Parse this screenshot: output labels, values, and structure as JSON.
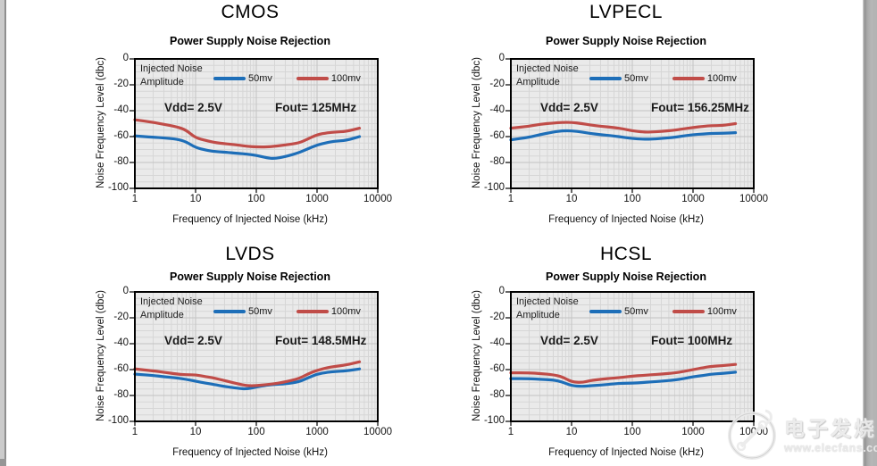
{
  "shared": {
    "legend": {
      "line1": "Injected Noise",
      "line2": "Amplitude"
    },
    "yticks": [
      0,
      -20,
      -40,
      -60,
      -80,
      -100
    ],
    "xticks": [
      1,
      10,
      100,
      1000,
      10000
    ],
    "colors": {
      "series_50mv": "#1d6eb8",
      "series_100mv": "#c04c48",
      "plot_bg": "#eaeaea",
      "grid_minor": "#d6d6d6",
      "grid_major": "#c3c3c3",
      "plot_border": "#000000"
    }
  },
  "chart_data": [
    {
      "type": "line",
      "title": "CMOS",
      "subtitle": "Power Supply Noise Rejection",
      "vdd": "Vdd= 2.5V",
      "fout": "Fout= 125MHz",
      "xlabel": "Frequency of Injected Noise (kHz)",
      "ylabel": "Noise Frequency Level (dbc)",
      "xscale": "log",
      "xlim": [
        1,
        10000
      ],
      "ylim": [
        -100,
        0
      ],
      "x": [
        1,
        2,
        3,
        5,
        7,
        10,
        15,
        20,
        30,
        50,
        70,
        100,
        150,
        200,
        300,
        500,
        700,
        1000,
        1500,
        2000,
        3000,
        5000
      ],
      "series": [
        {
          "name": "50mv",
          "values": [
            -59.5,
            -60.5,
            -61,
            -62,
            -64,
            -68.5,
            -70.5,
            -71.5,
            -72,
            -73,
            -73.5,
            -74.5,
            -76.5,
            -77,
            -75.5,
            -72.5,
            -69.5,
            -66.5,
            -64.5,
            -63.5,
            -63,
            -60
          ]
        },
        {
          "name": "100mv",
          "values": [
            -47,
            -49,
            -50.5,
            -52.5,
            -55,
            -61,
            -63,
            -64.5,
            -65.5,
            -66.5,
            -67.5,
            -68,
            -68,
            -67.5,
            -66.5,
            -65,
            -62,
            -58.5,
            -57,
            -56.5,
            -56,
            -53.5
          ]
        }
      ]
    },
    {
      "type": "line",
      "title": "LVPECL",
      "subtitle": "Power Supply Noise Rejection",
      "vdd": "Vdd= 2.5V",
      "fout": "Fout= 156.25MHz",
      "xlabel": "Frequency of Injected Noise (kHz)",
      "ylabel": "Noise Frequency Level (dbc)",
      "xscale": "log",
      "xlim": [
        1,
        10000
      ],
      "ylim": [
        -100,
        0
      ],
      "x": [
        1,
        2,
        3,
        5,
        7,
        10,
        15,
        20,
        30,
        50,
        70,
        100,
        150,
        200,
        300,
        500,
        700,
        1000,
        1500,
        2000,
        3000,
        5000
      ],
      "series": [
        {
          "name": "50mv",
          "values": [
            -62.5,
            -60.5,
            -58.5,
            -56.5,
            -55.5,
            -55.5,
            -56.5,
            -57.5,
            -58.5,
            -59.5,
            -60.5,
            -61.5,
            -62,
            -62,
            -61.5,
            -60.5,
            -59.5,
            -58.5,
            -58,
            -57.5,
            -57.5,
            -57
          ]
        },
        {
          "name": "100mv",
          "values": [
            -53.5,
            -52,
            -50.5,
            -49.5,
            -49,
            -49,
            -50,
            -51,
            -52,
            -53,
            -54,
            -55.5,
            -56.5,
            -56.5,
            -56,
            -55,
            -54,
            -53,
            -52,
            -51.5,
            -51.5,
            -50
          ]
        }
      ]
    },
    {
      "type": "line",
      "title": "LVDS",
      "subtitle": "Power Supply Noise Rejection",
      "vdd": "Vdd= 2.5V",
      "fout": "Fout= 148.5MHz",
      "xlabel": "Frequency of Injected Noise (kHz)",
      "ylabel": "Noise Frequency Level (dbc)",
      "xscale": "log",
      "xlim": [
        1,
        10000
      ],
      "ylim": [
        -100,
        0
      ],
      "x": [
        1,
        2,
        3,
        5,
        7,
        10,
        15,
        20,
        30,
        50,
        70,
        100,
        150,
        200,
        300,
        500,
        700,
        1000,
        1500,
        2000,
        3000,
        5000
      ],
      "series": [
        {
          "name": "50mv",
          "values": [
            -63.5,
            -64.5,
            -65.5,
            -66.5,
            -67.5,
            -69,
            -70.5,
            -71.5,
            -73,
            -74.5,
            -75,
            -73.5,
            -72,
            -71.5,
            -71,
            -69.5,
            -66.5,
            -63.5,
            -62,
            -61.5,
            -61,
            -59.5
          ]
        },
        {
          "name": "100mv",
          "values": [
            -59.5,
            -61,
            -62,
            -63.5,
            -64,
            -64,
            -65.5,
            -66.5,
            -68.5,
            -71,
            -72.5,
            -72.5,
            -71.5,
            -71,
            -69.5,
            -67,
            -63.5,
            -60.5,
            -58.5,
            -57.5,
            -56.5,
            -54
          ]
        }
      ]
    },
    {
      "type": "line",
      "title": "HCSL",
      "subtitle": "Power Supply Noise Rejection",
      "vdd": "Vdd= 2.5V",
      "fout": "Fout= 100MHz",
      "xlabel": "Frequency of Injected Noise (kHz)",
      "ylabel": "Noise Frequency Level (dbc)",
      "xscale": "log",
      "xlim": [
        1,
        10000
      ],
      "ylim": [
        -100,
        0
      ],
      "x": [
        1,
        2,
        3,
        5,
        7,
        10,
        15,
        20,
        30,
        50,
        70,
        100,
        150,
        200,
        300,
        500,
        700,
        1000,
        1500,
        2000,
        3000,
        5000
      ],
      "series": [
        {
          "name": "50mv",
          "values": [
            -67,
            -67,
            -67.5,
            -68,
            -69.5,
            -72.5,
            -73,
            -72.5,
            -72,
            -71,
            -70.5,
            -70.5,
            -70,
            -69.5,
            -69,
            -68,
            -67,
            -65.5,
            -64.5,
            -63.5,
            -63,
            -62
          ]
        },
        {
          "name": "100mv",
          "values": [
            -62.5,
            -62.5,
            -63,
            -64,
            -65.5,
            -69.5,
            -70,
            -68.5,
            -67.5,
            -66.5,
            -66,
            -65,
            -64.5,
            -64,
            -63.5,
            -62.5,
            -61.5,
            -60,
            -58.5,
            -57.5,
            -57,
            -56
          ]
        }
      ]
    }
  ],
  "watermark": {
    "cn": "电子发烧友",
    "url": "www.elecfans.com"
  }
}
